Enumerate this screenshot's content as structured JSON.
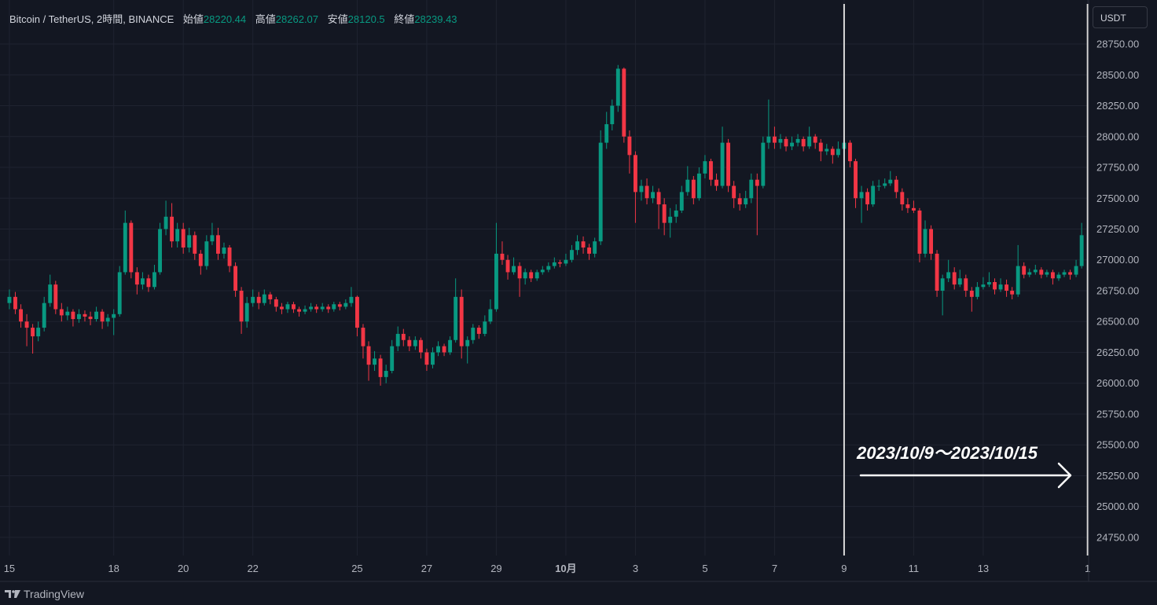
{
  "chart_data": {
    "type": "candlestick",
    "title": "Bitcoin / TetherUS, 2時間, BINANCE",
    "ohlc_header": [
      {
        "label": "始値",
        "value": 28220.44
      },
      {
        "label": "高値",
        "value": 28262.07
      },
      {
        "label": "安値",
        "value": 28120.5
      },
      {
        "label": "終値",
        "value": 28239.43
      }
    ],
    "currency": "USDT",
    "brand": "TradingView",
    "annotation": "2023/10/9〜2023/10/15",
    "up_color": "#089981",
    "down_color": "#f23645",
    "vlines": [
      39,
      46
    ],
    "xlim": [
      14.73,
      46.03
    ],
    "ylim": [
      24603,
      29107
    ],
    "xticks": [
      15,
      18,
      20,
      22,
      25,
      27,
      29,
      {
        "value": 31,
        "label": "10月"
      },
      {
        "value": 33,
        "label": "3"
      },
      {
        "value": 35,
        "label": "5"
      },
      {
        "value": 37,
        "label": "7"
      },
      {
        "value": 39,
        "label": "9"
      },
      {
        "value": 41,
        "label": "11"
      },
      {
        "value": 43,
        "label": "13"
      },
      {
        "value": 46,
        "label": "1"
      }
    ],
    "yticks": [
      {
        "value": 24750,
        "label": "24750.00"
      },
      {
        "value": 25000,
        "label": "25000.00"
      },
      {
        "value": 25250,
        "label": "25250.00"
      },
      {
        "value": 25500,
        "label": "25500.00"
      },
      {
        "value": 25750,
        "label": "25750.00"
      },
      {
        "value": 26000,
        "label": "26000.00"
      },
      {
        "value": 26250,
        "label": "26250.00"
      },
      {
        "value": 26500,
        "label": "26500.00"
      },
      {
        "value": 26750,
        "label": "26750.00"
      },
      {
        "value": 27000,
        "label": "27000.00"
      },
      {
        "value": 27250,
        "label": "27250.00"
      },
      {
        "value": 27500,
        "label": "27500.00"
      },
      {
        "value": 27750,
        "label": "27750.00"
      },
      {
        "value": 28000,
        "label": "28000.00"
      },
      {
        "value": 28250,
        "label": "28250.00"
      },
      {
        "value": 28500,
        "label": "28500.00"
      },
      {
        "value": 28750,
        "label": "28750.00"
      }
    ],
    "grid": true,
    "x": [
      15,
      15.17,
      15.33,
      15.5,
      15.67,
      15.83,
      16,
      16.17,
      16.33,
      16.5,
      16.67,
      16.83,
      17,
      17.17,
      17.33,
      17.5,
      17.67,
      17.83,
      18,
      18.17,
      18.33,
      18.5,
      18.67,
      18.83,
      19,
      19.17,
      19.33,
      19.5,
      19.67,
      19.83,
      20,
      20.17,
      20.33,
      20.5,
      20.67,
      20.83,
      21,
      21.17,
      21.33,
      21.5,
      21.67,
      21.83,
      22,
      22.17,
      22.33,
      22.5,
      22.67,
      22.83,
      23,
      23.17,
      23.33,
      23.5,
      23.67,
      23.83,
      24,
      24.17,
      24.33,
      24.5,
      24.67,
      24.83,
      25,
      25.17,
      25.33,
      25.5,
      25.67,
      25.83,
      26,
      26.17,
      26.33,
      26.5,
      26.67,
      26.83,
      27,
      27.17,
      27.33,
      27.5,
      27.67,
      27.83,
      28,
      28.17,
      28.33,
      28.5,
      28.67,
      28.83,
      29,
      29.17,
      29.33,
      29.5,
      29.67,
      29.83,
      30,
      30.17,
      30.33,
      30.5,
      30.67,
      30.83,
      31,
      31.17,
      31.33,
      31.5,
      31.67,
      31.83,
      32,
      32.17,
      32.33,
      32.5,
      32.67,
      32.83,
      33,
      33.17,
      33.33,
      33.5,
      33.67,
      33.83,
      34,
      34.17,
      34.33,
      34.5,
      34.67,
      34.83,
      35,
      35.17,
      35.33,
      35.5,
      35.67,
      35.83,
      36,
      36.17,
      36.33,
      36.5,
      36.67,
      36.83,
      37,
      37.17,
      37.33,
      37.5,
      37.67,
      37.83,
      38,
      38.17,
      38.33,
      38.5,
      38.67,
      38.83,
      39,
      39.17,
      39.33,
      39.5,
      39.67,
      39.83,
      40,
      40.17,
      40.33,
      40.5,
      40.67,
      40.83,
      41,
      41.17,
      41.33,
      41.5,
      41.67,
      41.83,
      42,
      42.17,
      42.33,
      42.5,
      42.67,
      42.83,
      43,
      43.17,
      43.33,
      43.5,
      43.67,
      43.83,
      44,
      44.17,
      44.33,
      44.5,
      44.67,
      44.83,
      45,
      45.17,
      45.33,
      45.5,
      45.67,
      45.83
    ],
    "ohlc": [
      [
        26650,
        26760,
        26600,
        26700
      ],
      [
        26700,
        26740,
        26560,
        26600
      ],
      [
        26600,
        26640,
        26450,
        26500
      ],
      [
        26500,
        26560,
        26300,
        26450
      ],
      [
        26450,
        26480,
        26240,
        26380
      ],
      [
        26380,
        26500,
        26340,
        26450
      ],
      [
        26450,
        26700,
        26420,
        26650
      ],
      [
        26650,
        26880,
        26620,
        26800
      ],
      [
        26800,
        26830,
        26560,
        26600
      ],
      [
        26600,
        26650,
        26500,
        26550
      ],
      [
        26550,
        26620,
        26510,
        26580
      ],
      [
        26580,
        26600,
        26460,
        26520
      ],
      [
        26520,
        26600,
        26490,
        26560
      ],
      [
        26560,
        26590,
        26500,
        26540
      ],
      [
        26540,
        26580,
        26470,
        26520
      ],
      [
        26520,
        26620,
        26500,
        26580
      ],
      [
        26580,
        26600,
        26440,
        26500
      ],
      [
        26500,
        26560,
        26460,
        26530
      ],
      [
        26530,
        26600,
        26390,
        26560
      ],
      [
        26560,
        26950,
        26540,
        26900
      ],
      [
        26900,
        27400,
        26880,
        27300
      ],
      [
        27300,
        27320,
        26850,
        26900
      ],
      [
        26900,
        26940,
        26720,
        26800
      ],
      [
        26800,
        26900,
        26760,
        26850
      ],
      [
        26850,
        26880,
        26740,
        26780
      ],
      [
        26780,
        26960,
        26760,
        26900
      ],
      [
        26900,
        27300,
        26880,
        27250
      ],
      [
        27250,
        27480,
        27200,
        27350
      ],
      [
        27350,
        27460,
        27100,
        27150
      ],
      [
        27150,
        27300,
        27100,
        27250
      ],
      [
        27250,
        27300,
        27050,
        27100
      ],
      [
        27100,
        27260,
        27060,
        27200
      ],
      [
        27200,
        27230,
        27000,
        27050
      ],
      [
        27050,
        27080,
        26880,
        26950
      ],
      [
        26950,
        27200,
        26920,
        27150
      ],
      [
        27150,
        27300,
        27120,
        27200
      ],
      [
        27200,
        27260,
        27000,
        27050
      ],
      [
        27050,
        27140,
        27010,
        27100
      ],
      [
        27100,
        27120,
        26900,
        26950
      ],
      [
        26950,
        26980,
        26700,
        26750
      ],
      [
        26750,
        26780,
        26400,
        26500
      ],
      [
        26500,
        26700,
        26450,
        26650
      ],
      [
        26650,
        26760,
        26620,
        26700
      ],
      [
        26700,
        26740,
        26600,
        26650
      ],
      [
        26650,
        26760,
        26630,
        26720
      ],
      [
        26720,
        26740,
        26640,
        26680
      ],
      [
        26680,
        26700,
        26580,
        26620
      ],
      [
        26620,
        26650,
        26560,
        26600
      ],
      [
        26600,
        26660,
        26570,
        26640
      ],
      [
        26640,
        26660,
        26570,
        26600
      ],
      [
        26600,
        26620,
        26540,
        26580
      ],
      [
        26580,
        26630,
        26560,
        26600
      ],
      [
        26600,
        26650,
        26580,
        26620
      ],
      [
        26620,
        26640,
        26570,
        26600
      ],
      [
        26600,
        26650,
        26580,
        26620
      ],
      [
        26620,
        26640,
        26570,
        26600
      ],
      [
        26600,
        26660,
        26580,
        26640
      ],
      [
        26640,
        26660,
        26590,
        26620
      ],
      [
        26620,
        26680,
        26600,
        26650
      ],
      [
        26650,
        26780,
        26620,
        26700
      ],
      [
        26700,
        26710,
        26380,
        26450
      ],
      [
        26450,
        26480,
        26200,
        26300
      ],
      [
        26300,
        26340,
        26020,
        26150
      ],
      [
        26150,
        26260,
        26100,
        26200
      ],
      [
        26200,
        26230,
        25980,
        26050
      ],
      [
        26050,
        26150,
        26000,
        26100
      ],
      [
        26100,
        26350,
        26080,
        26300
      ],
      [
        26300,
        26460,
        26260,
        26400
      ],
      [
        26400,
        26440,
        26300,
        26350
      ],
      [
        26350,
        26380,
        26260,
        26300
      ],
      [
        26300,
        26380,
        26270,
        26350
      ],
      [
        26350,
        26370,
        26200,
        26250
      ],
      [
        26250,
        26280,
        26100,
        26150
      ],
      [
        26150,
        26290,
        26120,
        26250
      ],
      [
        26250,
        26340,
        26220,
        26300
      ],
      [
        26300,
        26320,
        26220,
        26250
      ],
      [
        26250,
        26380,
        26230,
        26350
      ],
      [
        26350,
        26850,
        26330,
        26700
      ],
      [
        26700,
        26760,
        26200,
        26300
      ],
      [
        26300,
        26380,
        26160,
        26350
      ],
      [
        26350,
        26480,
        26320,
        26450
      ],
      [
        26450,
        26470,
        26360,
        26400
      ],
      [
        26400,
        26550,
        26380,
        26500
      ],
      [
        26500,
        26680,
        26480,
        26600
      ],
      [
        26600,
        27300,
        26580,
        27050
      ],
      [
        27050,
        27150,
        26960,
        27000
      ],
      [
        27000,
        27040,
        26840,
        26900
      ],
      [
        26900,
        27020,
        26880,
        26950
      ],
      [
        26950,
        26980,
        26700,
        26850
      ],
      [
        26850,
        26930,
        26800,
        26900
      ],
      [
        26900,
        26920,
        26820,
        26850
      ],
      [
        26850,
        26920,
        26830,
        26900
      ],
      [
        26900,
        26950,
        26880,
        26920
      ],
      [
        26920,
        26980,
        26900,
        26950
      ],
      [
        26950,
        27020,
        26930,
        26980
      ],
      [
        26980,
        27000,
        26940,
        26970
      ],
      [
        26970,
        27050,
        26950,
        27000
      ],
      [
        27000,
        27120,
        26980,
        27080
      ],
      [
        27080,
        27200,
        27040,
        27150
      ],
      [
        27150,
        27190,
        27050,
        27100
      ],
      [
        27100,
        27130,
        27000,
        27050
      ],
      [
        27050,
        27180,
        27020,
        27150
      ],
      [
        27150,
        28050,
        27120,
        27950
      ],
      [
        27950,
        28200,
        27900,
        28100
      ],
      [
        28100,
        28300,
        28050,
        28250
      ],
      [
        28250,
        28580,
        28200,
        28550
      ],
      [
        28550,
        28560,
        27950,
        28000
      ],
      [
        28000,
        28050,
        27700,
        27850
      ],
      [
        27850,
        27880,
        27300,
        27550
      ],
      [
        27550,
        27650,
        27480,
        27600
      ],
      [
        27600,
        27660,
        27450,
        27500
      ],
      [
        27500,
        27600,
        27460,
        27550
      ],
      [
        27550,
        27580,
        27250,
        27450
      ],
      [
        27450,
        27500,
        27200,
        27300
      ],
      [
        27300,
        27420,
        27180,
        27350
      ],
      [
        27350,
        27450,
        27300,
        27400
      ],
      [
        27400,
        27600,
        27380,
        27550
      ],
      [
        27550,
        27760,
        27520,
        27650
      ],
      [
        27650,
        27680,
        27450,
        27500
      ],
      [
        27500,
        27750,
        27480,
        27700
      ],
      [
        27700,
        27850,
        27660,
        27800
      ],
      [
        27800,
        27820,
        27600,
        27650
      ],
      [
        27650,
        27700,
        27560,
        27600
      ],
      [
        27600,
        28080,
        27580,
        27950
      ],
      [
        27950,
        27980,
        27550,
        27600
      ],
      [
        27600,
        27640,
        27420,
        27500
      ],
      [
        27500,
        27540,
        27400,
        27450
      ],
      [
        27450,
        27560,
        27420,
        27500
      ],
      [
        27500,
        27700,
        27460,
        27650
      ],
      [
        27650,
        27700,
        27200,
        27600
      ],
      [
        27600,
        28000,
        27580,
        27950
      ],
      [
        27950,
        28300,
        27900,
        28000
      ],
      [
        28000,
        28080,
        27900,
        27950
      ],
      [
        27950,
        28020,
        27900,
        27980
      ],
      [
        27980,
        28000,
        27880,
        27920
      ],
      [
        27920,
        28000,
        27890,
        27950
      ],
      [
        27950,
        28020,
        27920,
        27980
      ],
      [
        27980,
        28000,
        27880,
        27920
      ],
      [
        27920,
        28080,
        27900,
        28000
      ],
      [
        28000,
        28020,
        27900,
        27950
      ],
      [
        27950,
        27980,
        27800,
        27880
      ],
      [
        27880,
        27940,
        27850,
        27900
      ],
      [
        27900,
        27920,
        27780,
        27850
      ],
      [
        27850,
        27960,
        27830,
        27900
      ],
      [
        27900,
        27980,
        27860,
        27950
      ],
      [
        27950,
        27970,
        27750,
        27800
      ],
      [
        27800,
        27820,
        27420,
        27500
      ],
      [
        27500,
        27600,
        27300,
        27550
      ],
      [
        27550,
        27580,
        27400,
        27450
      ],
      [
        27450,
        27640,
        27430,
        27600
      ],
      [
        27600,
        27650,
        27560,
        27600
      ],
      [
        27600,
        27660,
        27580,
        27620
      ],
      [
        27620,
        27720,
        27600,
        27650
      ],
      [
        27650,
        27680,
        27500,
        27550
      ],
      [
        27550,
        27580,
        27400,
        27450
      ],
      [
        27450,
        27500,
        27380,
        27420
      ],
      [
        27420,
        27480,
        27380,
        27400
      ],
      [
        27400,
        27420,
        26980,
        27050
      ],
      [
        27050,
        27320,
        27020,
        27250
      ],
      [
        27250,
        27280,
        27000,
        27050
      ],
      [
        27050,
        27080,
        26700,
        26750
      ],
      [
        26750,
        26880,
        26550,
        26850
      ],
      [
        26850,
        27000,
        26820,
        26900
      ],
      [
        26900,
        26940,
        26760,
        26800
      ],
      [
        26800,
        26920,
        26780,
        26850
      ],
      [
        26850,
        26880,
        26700,
        26750
      ],
      [
        26750,
        26780,
        26580,
        26700
      ],
      [
        26700,
        26820,
        26680,
        26780
      ],
      [
        26780,
        26860,
        26760,
        26800
      ],
      [
        26800,
        26900,
        26780,
        26820
      ],
      [
        26820,
        26850,
        26720,
        26760
      ],
      [
        26760,
        26850,
        26740,
        26800
      ],
      [
        26800,
        26840,
        26700,
        26750
      ],
      [
        26750,
        26780,
        26680,
        26720
      ],
      [
        26720,
        27120,
        26700,
        26950
      ],
      [
        26950,
        26980,
        26850,
        26880
      ],
      [
        26880,
        26930,
        26860,
        26900
      ],
      [
        26900,
        26960,
        26880,
        26920
      ],
      [
        26920,
        26940,
        26850,
        26880
      ],
      [
        26880,
        26920,
        26860,
        26900
      ],
      [
        26900,
        26920,
        26800,
        26850
      ],
      [
        26850,
        26900,
        26830,
        26880
      ],
      [
        26880,
        26920,
        26860,
        26900
      ],
      [
        26900,
        26920,
        26840,
        26880
      ],
      [
        26880,
        27000,
        26860,
        26950
      ],
      [
        26950,
        27300,
        26930,
        27200
      ]
    ]
  }
}
